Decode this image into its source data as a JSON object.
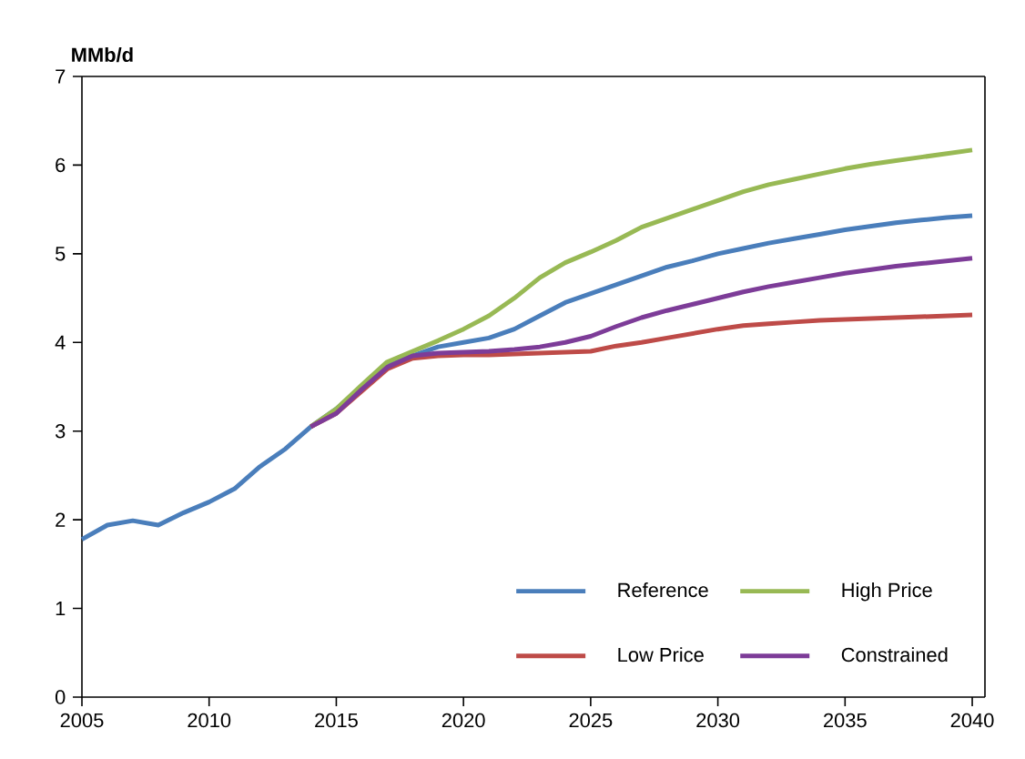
{
  "chart_data": {
    "type": "line",
    "ylabel": "MMb/d",
    "xlim": [
      2005,
      2040.5
    ],
    "ylim": [
      0,
      7
    ],
    "xticks": [
      2005,
      2010,
      2015,
      2020,
      2025,
      2030,
      2035,
      2040
    ],
    "yticks": [
      0,
      1,
      2,
      3,
      4,
      5,
      6,
      7
    ],
    "grid": false,
    "legend": "bottom right",
    "marker": "none",
    "line_style": "solid",
    "series": [
      {
        "name": "Reference",
        "color": "#4a7ebb",
        "x": [
          2005,
          2006,
          2007,
          2008,
          2009,
          2010,
          2011,
          2012,
          2013,
          2014,
          2015,
          2016,
          2017,
          2018,
          2019,
          2020,
          2021,
          2022,
          2023,
          2024,
          2025,
          2026,
          2027,
          2028,
          2029,
          2030,
          2031,
          2032,
          2033,
          2034,
          2035,
          2036,
          2037,
          2038,
          2039,
          2040
        ],
        "values": [
          1.78,
          1.94,
          1.99,
          1.94,
          2.08,
          2.2,
          2.35,
          2.6,
          2.8,
          3.05,
          3.25,
          3.5,
          3.75,
          3.85,
          3.95,
          4.0,
          4.05,
          4.15,
          4.3,
          4.45,
          4.55,
          4.65,
          4.75,
          4.85,
          4.92,
          5.0,
          5.06,
          5.12,
          5.17,
          5.22,
          5.27,
          5.31,
          5.35,
          5.38,
          5.41,
          5.43
        ]
      },
      {
        "name": "High Price",
        "color": "#98b954",
        "x": [
          2014,
          2015,
          2016,
          2017,
          2018,
          2019,
          2020,
          2021,
          2022,
          2023,
          2024,
          2025,
          2026,
          2027,
          2028,
          2029,
          2030,
          2031,
          2032,
          2033,
          2034,
          2035,
          2036,
          2037,
          2038,
          2039,
          2040
        ],
        "values": [
          3.05,
          3.25,
          3.52,
          3.78,
          3.9,
          4.02,
          4.15,
          4.3,
          4.5,
          4.73,
          4.9,
          5.02,
          5.15,
          5.3,
          5.4,
          5.5,
          5.6,
          5.7,
          5.78,
          5.84,
          5.9,
          5.96,
          6.01,
          6.05,
          6.09,
          6.13,
          6.17
        ]
      },
      {
        "name": "Low Price",
        "color": "#be4b48",
        "x": [
          2014,
          2015,
          2016,
          2017,
          2018,
          2019,
          2020,
          2021,
          2022,
          2023,
          2024,
          2025,
          2026,
          2027,
          2028,
          2029,
          2030,
          2031,
          2032,
          2033,
          2034,
          2035,
          2036,
          2037,
          2038,
          2039,
          2040
        ],
        "values": [
          3.05,
          3.2,
          3.45,
          3.7,
          3.82,
          3.85,
          3.86,
          3.86,
          3.87,
          3.88,
          3.89,
          3.9,
          3.96,
          4.0,
          4.05,
          4.1,
          4.15,
          4.19,
          4.21,
          4.23,
          4.25,
          4.26,
          4.27,
          4.28,
          4.29,
          4.3,
          4.31
        ]
      },
      {
        "name": "Constrained",
        "color": "#7d3c98",
        "x": [
          2014,
          2015,
          2016,
          2017,
          2018,
          2019,
          2020,
          2021,
          2022,
          2023,
          2024,
          2025,
          2026,
          2027,
          2028,
          2029,
          2030,
          2031,
          2032,
          2033,
          2034,
          2035,
          2036,
          2037,
          2038,
          2039,
          2040
        ],
        "values": [
          3.05,
          3.2,
          3.47,
          3.72,
          3.85,
          3.88,
          3.89,
          3.9,
          3.92,
          3.95,
          4.0,
          4.07,
          4.18,
          4.28,
          4.36,
          4.43,
          4.5,
          4.57,
          4.63,
          4.68,
          4.73,
          4.78,
          4.82,
          4.86,
          4.89,
          4.92,
          4.95
        ]
      }
    ]
  }
}
